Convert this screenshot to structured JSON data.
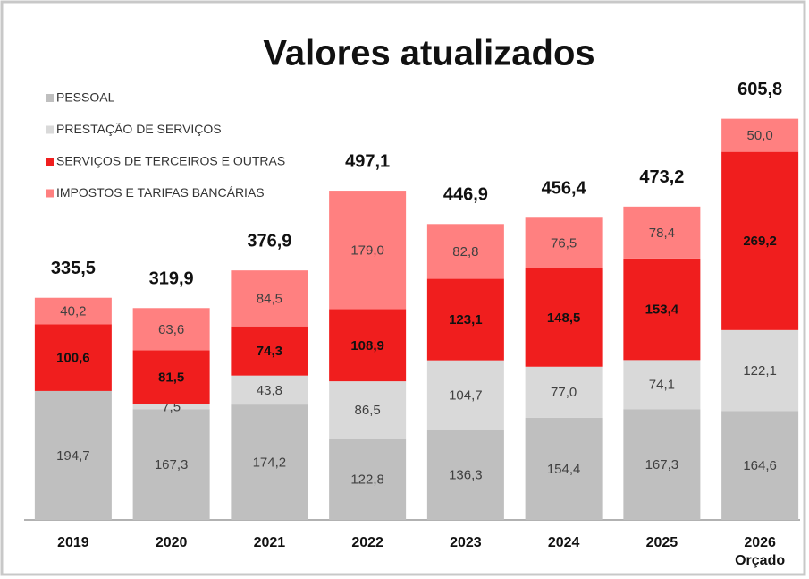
{
  "chart_data": {
    "type": "stacked_bar",
    "title": "Valores atualizados",
    "categories": [
      "2019",
      "2020",
      "2021",
      "2022",
      "2023",
      "2024",
      "2025",
      "2026\nOrçado"
    ],
    "ylim": [
      0,
      650
    ],
    "series": [
      {
        "name": "PESSOAL",
        "color": "#bfbfbf",
        "values": [
          194.7,
          167.3,
          174.2,
          122.8,
          136.3,
          154.4,
          167.3,
          164.6
        ],
        "value_labels": [
          "194,7",
          "167,3",
          "174,2",
          "122,8",
          "136,3",
          "154,4",
          "167,3",
          "164,6"
        ]
      },
      {
        "name": "PRESTAÇÃO DE SERVIÇOS",
        "color": "#d9d9d9",
        "values": [
          null,
          7.5,
          43.8,
          86.5,
          104.7,
          77.0,
          74.1,
          122.1
        ],
        "value_labels": [
          null,
          "7,5",
          "43,8",
          "86,5",
          "104,7",
          "77,0",
          "74,1",
          "122,1"
        ]
      },
      {
        "name": "SERVIÇOS DE TERCEIROS E OUTRAS",
        "color": "#f01e1e",
        "values": [
          100.6,
          81.5,
          74.3,
          108.9,
          123.1,
          148.5,
          153.4,
          269.2
        ],
        "value_labels": [
          "100,6",
          "81,5",
          "74,3",
          "108,9",
          "123,1",
          "148,5",
          "153,4",
          "269,2"
        ]
      },
      {
        "name": "IMPOSTOS E TARIFAS BANCÁRIAS",
        "color": "#ff8080",
        "values": [
          40.2,
          63.6,
          84.5,
          179.0,
          82.8,
          76.5,
          78.4,
          50.0
        ],
        "value_labels": [
          "40,2",
          "63,6",
          "84,5",
          "179,0",
          "82,8",
          "76,5",
          "78,4",
          "50,0"
        ]
      }
    ],
    "totals": [
      335.5,
      319.9,
      376.9,
      497.1,
      446.9,
      456.4,
      473.2,
      605.8
    ],
    "total_labels": [
      "335,5",
      "319,9",
      "376,9",
      "497,1",
      "446,9",
      "456,4",
      "473,2",
      "605,8"
    ]
  }
}
